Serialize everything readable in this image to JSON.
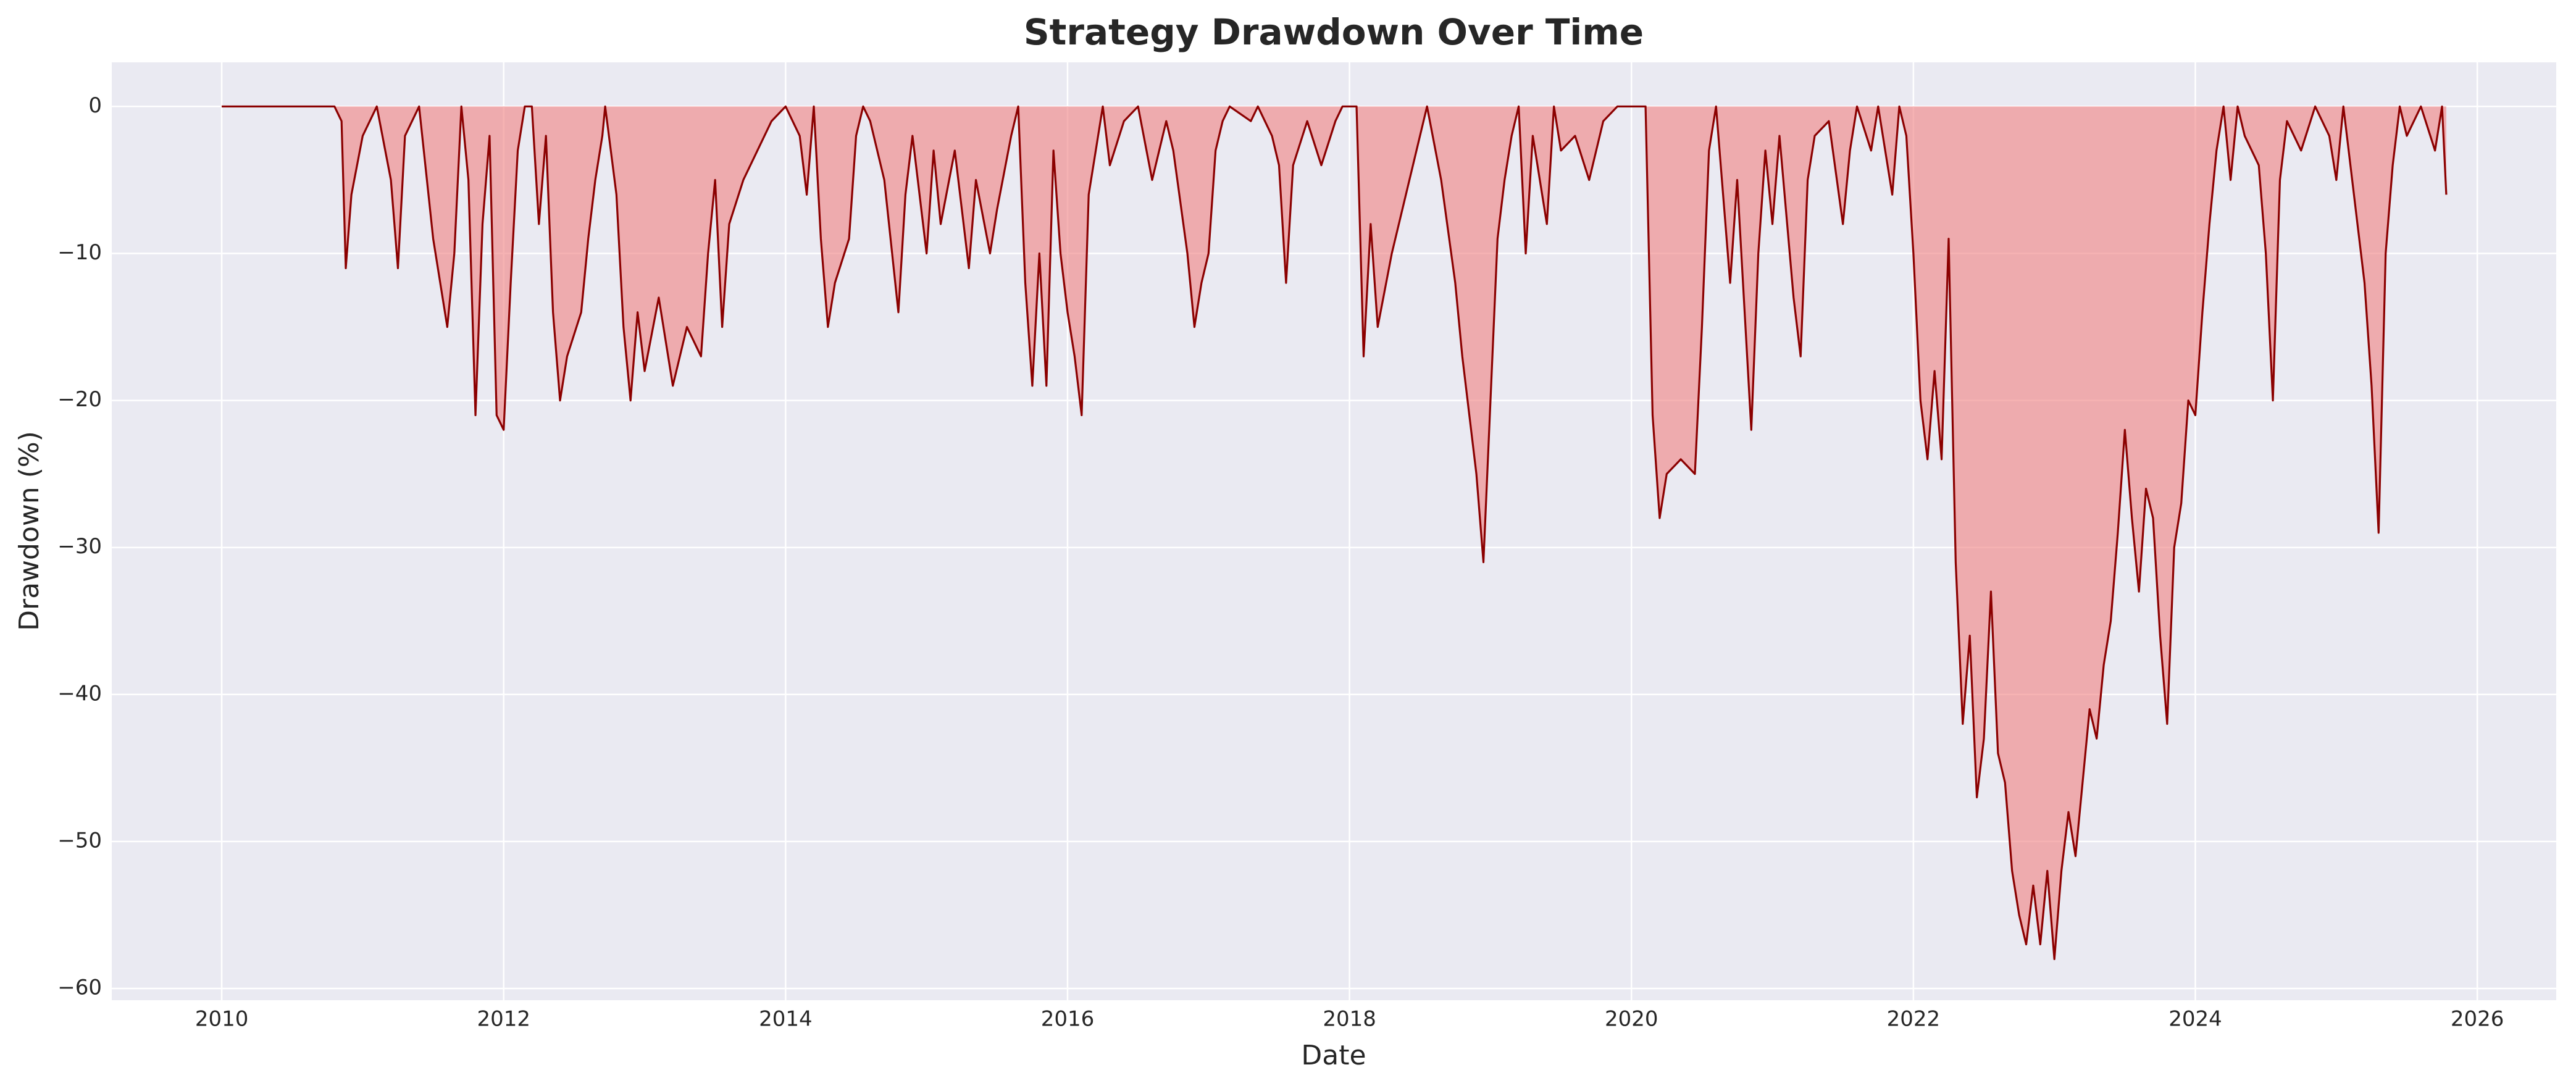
{
  "chart_data": {
    "type": "area",
    "title": "Strategy Drawdown Over Time",
    "x_label": "Date",
    "y_label": "Drawdown (%)",
    "color": "#8b0000",
    "fill_color": "#f08080",
    "grid": true,
    "xlim": [
      2009.22,
      2026.56
    ],
    "ylim": [
      -60.8,
      3
    ],
    "xticks": [
      2010,
      2012,
      2014,
      2016,
      2018,
      2020,
      2022,
      2024,
      2026
    ],
    "yticks": [
      {
        "value": -60,
        "label": "−60"
      },
      {
        "value": -50,
        "label": "−50"
      },
      {
        "value": -40,
        "label": "−40"
      },
      {
        "value": -30,
        "label": "−30"
      },
      {
        "value": -20,
        "label": "−20"
      },
      {
        "value": -10,
        "label": "−10"
      },
      0
    ],
    "x": [
      2010.0,
      2010.8,
      2010.85,
      2010.88,
      2010.92,
      2011.0,
      2011.1,
      2011.2,
      2011.25,
      2011.3,
      2011.4,
      2011.5,
      2011.6,
      2011.65,
      2011.7,
      2011.75,
      2011.8,
      2011.85,
      2011.9,
      2011.95,
      2012.0,
      2012.05,
      2012.1,
      2012.15,
      2012.2,
      2012.25,
      2012.3,
      2012.35,
      2012.4,
      2012.45,
      2012.55,
      2012.6,
      2012.65,
      2012.7,
      2012.72,
      2012.8,
      2012.85,
      2012.9,
      2012.95,
      2013.0,
      2013.1,
      2013.2,
      2013.3,
      2013.4,
      2013.45,
      2013.5,
      2013.55,
      2013.6,
      2013.7,
      2013.8,
      2013.9,
      2014.0,
      2014.1,
      2014.15,
      2014.2,
      2014.25,
      2014.3,
      2014.35,
      2014.45,
      2014.5,
      2014.55,
      2014.6,
      2014.7,
      2014.8,
      2014.85,
      2014.9,
      2015.0,
      2015.05,
      2015.1,
      2015.2,
      2015.3,
      2015.35,
      2015.45,
      2015.5,
      2015.6,
      2015.65,
      2015.7,
      2015.75,
      2015.8,
      2015.85,
      2015.9,
      2015.95,
      2016.0,
      2016.05,
      2016.1,
      2016.15,
      2016.2,
      2016.25,
      2016.3,
      2016.4,
      2016.5,
      2016.6,
      2016.7,
      2016.75,
      2016.85,
      2016.9,
      2016.95,
      2017.0,
      2017.05,
      2017.1,
      2017.15,
      2017.3,
      2017.35,
      2017.45,
      2017.5,
      2017.55,
      2017.6,
      2017.7,
      2017.8,
      2017.9,
      2017.95,
      2018.05,
      2018.1,
      2018.15,
      2018.2,
      2018.3,
      2018.4,
      2018.5,
      2018.55,
      2018.65,
      2018.75,
      2018.8,
      2018.85,
      2018.9,
      2018.95,
      2019.0,
      2019.05,
      2019.1,
      2019.15,
      2019.2,
      2019.25,
      2019.3,
      2019.35,
      2019.4,
      2019.45,
      2019.5,
      2019.6,
      2019.7,
      2019.8,
      2019.9,
      2020.1,
      2020.15,
      2020.2,
      2020.25,
      2020.35,
      2020.45,
      2020.5,
      2020.55,
      2020.6,
      2020.7,
      2020.75,
      2020.85,
      2020.9,
      2020.95,
      2021.0,
      2021.05,
      2021.15,
      2021.2,
      2021.25,
      2021.3,
      2021.4,
      2021.5,
      2021.55,
      2021.6,
      2021.7,
      2021.75,
      2021.85,
      2021.9,
      2021.95,
      2022.0,
      2022.05,
      2022.1,
      2022.15,
      2022.2,
      2022.25,
      2022.3,
      2022.35,
      2022.4,
      2022.45,
      2022.5,
      2022.55,
      2022.6,
      2022.65,
      2022.7,
      2022.75,
      2022.8,
      2022.85,
      2022.9,
      2022.95,
      2023.0,
      2023.05,
      2023.1,
      2023.15,
      2023.2,
      2023.25,
      2023.3,
      2023.35,
      2023.4,
      2023.45,
      2023.5,
      2023.55,
      2023.6,
      2023.65,
      2023.7,
      2023.75,
      2023.8,
      2023.85,
      2023.9,
      2023.95,
      2024.0,
      2024.05,
      2024.1,
      2024.15,
      2024.2,
      2024.25,
      2024.3,
      2024.35,
      2024.45,
      2024.5,
      2024.55,
      2024.6,
      2024.65,
      2024.75,
      2024.85,
      2024.95,
      2025.0,
      2025.05,
      2025.15,
      2025.2,
      2025.25,
      2025.3,
      2025.35,
      2025.4,
      2025.45,
      2025.5,
      2025.6,
      2025.7,
      2025.75,
      2025.78
    ],
    "values": [
      0,
      0,
      -1,
      -11,
      -6,
      -2,
      0,
      -5,
      -11,
      -2,
      0,
      -9,
      -15,
      -10,
      0,
      -5,
      -21,
      -8,
      -2,
      -21,
      -22,
      -12,
      -3,
      0,
      0,
      -8,
      -2,
      -14,
      -20,
      -17,
      -14,
      -9,
      -5,
      -2,
      0,
      -6,
      -15,
      -20,
      -14,
      -18,
      -13,
      -19,
      -15,
      -17,
      -10,
      -5,
      -15,
      -8,
      -5,
      -3,
      -1,
      0,
      -2,
      -6,
      0,
      -9,
      -15,
      -12,
      -9,
      -2,
      0,
      -1,
      -5,
      -14,
      -6,
      -2,
      -10,
      -3,
      -8,
      -3,
      -11,
      -5,
      -10,
      -7,
      -2,
      0,
      -12,
      -19,
      -10,
      -19,
      -3,
      -10,
      -14,
      -17,
      -21,
      -6,
      -3,
      0,
      -4,
      -1,
      0,
      -5,
      -1,
      -3,
      -10,
      -15,
      -12,
      -10,
      -3,
      -1,
      0,
      -1,
      0,
      -2,
      -4,
      -12,
      -4,
      -1,
      -4,
      -1,
      0,
      0,
      -17,
      -8,
      -15,
      -10,
      -6,
      -2,
      0,
      -5,
      -12,
      -17,
      -21,
      -25,
      -31,
      -20,
      -9,
      -5,
      -2,
      0,
      -10,
      -2,
      -5,
      -8,
      0,
      -3,
      -2,
      -5,
      -1,
      0,
      0,
      -21,
      -28,
      -25,
      -24,
      -25,
      -15,
      -3,
      0,
      -12,
      -5,
      -22,
      -10,
      -3,
      -8,
      -2,
      -13,
      -17,
      -5,
      -2,
      -1,
      -8,
      -3,
      0,
      -3,
      0,
      -6,
      0,
      -2,
      -10,
      -20,
      -24,
      -18,
      -24,
      -9,
      -31,
      -42,
      -36,
      -47,
      -43,
      -33,
      -44,
      -46,
      -52,
      -55,
      -57,
      -53,
      -57,
      -52,
      -58,
      -52,
      -48,
      -51,
      -46,
      -41,
      -43,
      -38,
      -35,
      -29,
      -22,
      -28,
      -33,
      -26,
      -28,
      -36,
      -42,
      -30,
      -27,
      -20,
      -21,
      -14,
      -8,
      -3,
      0,
      -5,
      0,
      -2,
      -4,
      -10,
      -20,
      -5,
      -1,
      -3,
      0,
      -2,
      -5,
      0,
      -8,
      -12,
      -19,
      -29,
      -10,
      -4,
      0,
      -2,
      0,
      -3,
      0,
      -6
    ]
  }
}
